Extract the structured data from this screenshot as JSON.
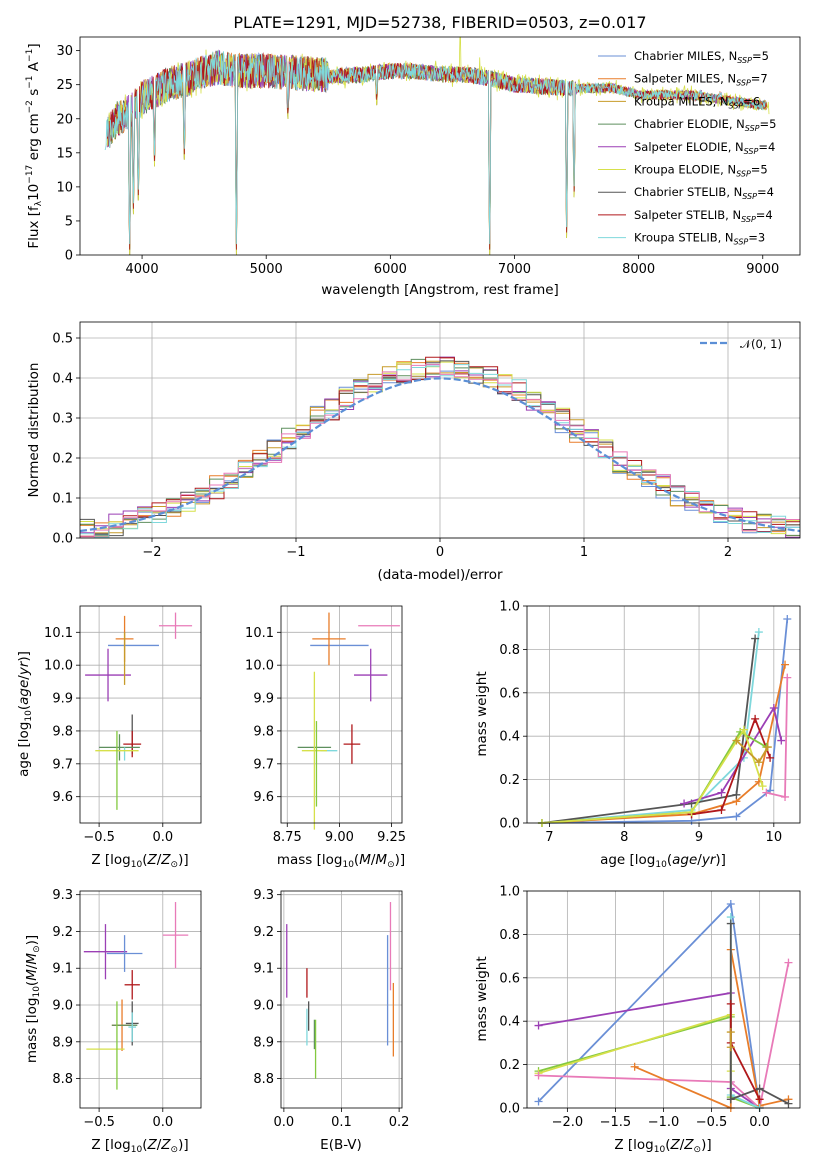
{
  "chart_data": [
    {
      "type": "line",
      "panel": "spectrum",
      "title": "PLATE=1291, MJD=52738, FIBERID=0503, z=0.017",
      "xlabel": "wavelength [Angstrom, rest frame]",
      "ylabel": "Flux [fλ10⁻¹⁷ erg cm⁻² s⁻¹ A⁻¹]",
      "xlim": [
        3500,
        9300
      ],
      "ylim": [
        0,
        32
      ],
      "xticks": [
        "4000",
        "5000",
        "6000",
        "7000",
        "8000",
        "9000"
      ],
      "yticks": [
        "0",
        "5",
        "10",
        "15",
        "20",
        "25",
        "30"
      ],
      "grid": false,
      "legend_position": "top-right",
      "legend": [
        {
          "label": "Chabrier MILES, N",
          "sub": "SSP",
          "tail": "=5",
          "color": "#6a8fd6"
        },
        {
          "label": "Salpeter MILES, N",
          "sub": "SSP",
          "tail": "=7",
          "color": "#e87d2a"
        },
        {
          "label": "Kroupa MILES, N",
          "sub": "SSP",
          "tail": "=6",
          "color": "#c79b2a"
        },
        {
          "label": "Chabrier ELODIE, N",
          "sub": "SSP",
          "tail": "=5",
          "color": "#5e8f5e"
        },
        {
          "label": "Salpeter ELODIE, N",
          "sub": "SSP",
          "tail": "=4",
          "color": "#9b3fb5"
        },
        {
          "label": "Kroupa ELODIE, N",
          "sub": "SSP",
          "tail": "=5",
          "color": "#d6e04a"
        },
        {
          "label": "Chabrier STELIB, N",
          "sub": "SSP",
          "tail": "=4",
          "color": "#555555"
        },
        {
          "label": "Salpeter STELIB, N",
          "sub": "SSP",
          "tail": "=4",
          "color": "#b0181b"
        },
        {
          "label": "Kroupa STELIB, N",
          "sub": "SSP",
          "tail": "=3",
          "color": "#7fd8dc"
        }
      ],
      "continuum": {
        "x": [
          3700,
          3800,
          3900,
          4000,
          4100,
          4200,
          4300,
          4400,
          4500,
          4600,
          4800,
          5000,
          5200,
          5400,
          5600,
          5800,
          6000,
          6200,
          6400,
          6600,
          6800,
          7000,
          7200,
          7400,
          7600,
          7800,
          8000,
          8200,
          8400,
          8600,
          8800,
          9000
        ],
        "y": [
          17,
          20,
          21,
          23,
          24,
          25,
          25.5,
          26,
          27,
          27.5,
          27,
          27,
          26.8,
          26.5,
          26.3,
          26.5,
          27,
          27,
          26.5,
          26.5,
          26,
          25,
          24.8,
          24.5,
          24.5,
          24.5,
          23.5,
          23.5,
          23.5,
          23,
          22.5,
          22
        ]
      },
      "absorption_features": [
        {
          "x": 3900,
          "y": 0
        },
        {
          "x": 3930,
          "y": 6
        },
        {
          "x": 3970,
          "y": 8
        },
        {
          "x": 4100,
          "y": 13
        },
        {
          "x": 4340,
          "y": 14
        },
        {
          "x": 4760,
          "y": 0
        },
        {
          "x": 5175,
          "y": 20
        },
        {
          "x": 5890,
          "y": 22
        },
        {
          "x": 6800,
          "y": 0
        },
        {
          "x": 7420,
          "y": 2.5
        },
        {
          "x": 7480,
          "y": 8.5
        },
        {
          "x": 8500,
          "y": 22
        },
        {
          "x": 8660,
          "y": 22
        }
      ],
      "emission_features": [
        {
          "x": 6563,
          "y": 33
        },
        {
          "x": 6720,
          "y": 29
        }
      ]
    },
    {
      "type": "line",
      "panel": "residual-histogram",
      "xlabel": "(data-model)/error",
      "ylabel": "Normed distribution",
      "xlim": [
        -2.5,
        2.5
      ],
      "ylim": [
        0,
        0.54
      ],
      "xticks": [
        "−2",
        "−1",
        "0",
        "1",
        "2"
      ],
      "yticks": [
        "0.0",
        "0.1",
        "0.2",
        "0.3",
        "0.4",
        "0.5"
      ],
      "grid": true,
      "legend_position": "top-right",
      "legend_label": "𝒩(0, 1)",
      "reference_curve": "normal(0,1)",
      "bin_width": 0.1,
      "series_colors": [
        "#6a8fd6",
        "#e87d2a",
        "#c79b2a",
        "#5e8f5e",
        "#9b3fb5",
        "#d6e04a",
        "#555555",
        "#b0181b",
        "#7fd8dc",
        "#e87ab8"
      ]
    },
    {
      "type": "scatter",
      "panel": "age-vs-Z",
      "xlabel": "Z [log₁₀(Z/Z⊙)]",
      "ylabel": "age  [log₁₀(age/yr)]",
      "xlim": [
        -0.65,
        0.3
      ],
      "ylim": [
        9.52,
        10.18
      ],
      "xticks": [
        "−0.5",
        "0.0"
      ],
      "yticks": [
        "9.6",
        "9.7",
        "9.8",
        "9.9",
        "10.0",
        "10.1"
      ],
      "grid": true,
      "points": [
        {
          "color": "#6a8fd6",
          "x": -0.23,
          "xerr": 0.2,
          "y": 10.06,
          "yerr": 0.0
        },
        {
          "color": "#e87ab8",
          "x": 0.1,
          "xerr": 0.13,
          "y": 10.12,
          "yerr": 0.04
        },
        {
          "color": "#e87d2a",
          "x": -0.3,
          "xerr": 0.07,
          "y": 10.08,
          "yerr": 0.07
        },
        {
          "color": "#9b3fb5",
          "x": -0.43,
          "xerr": 0.18,
          "y": 9.97,
          "yerr": 0.08
        },
        {
          "color": "#c79b2a",
          "x": -0.3,
          "xerr": 0.0,
          "y": 10.02,
          "yerr": 0.08
        },
        {
          "color": "#555555",
          "x": -0.24,
          "xerr": 0.0,
          "y": 9.79,
          "yerr": 0.06
        },
        {
          "color": "#b0181b",
          "x": -0.24,
          "xerr": 0.07,
          "y": 9.76,
          "yerr": 0.04
        },
        {
          "color": "#5e8f5e",
          "x": -0.34,
          "xerr": 0.16,
          "y": 9.75,
          "yerr": 0.04
        },
        {
          "color": "#7fd8dc",
          "x": -0.3,
          "xerr": 0.0,
          "y": 9.73,
          "yerr": 0.02
        },
        {
          "color": "#d6e04a",
          "x": -0.36,
          "xerr": 0.17,
          "y": 9.74,
          "yerr": 0.0
        },
        {
          "color": "#83c93f",
          "x": -0.36,
          "xerr": 0.0,
          "y": 9.68,
          "yerr": 0.12
        }
      ]
    },
    {
      "type": "scatter",
      "panel": "age-vs-mass",
      "xlabel": "mass [log₁₀(M/M⊙)]",
      "ylabel": "",
      "xlim": [
        8.72,
        9.3
      ],
      "ylim": [
        9.52,
        10.18
      ],
      "xticks": [
        "8.75",
        "9.00",
        "9.25"
      ],
      "yticks": [
        "9.6",
        "9.7",
        "9.8",
        "9.9",
        "10.0",
        "10.1"
      ],
      "grid": true,
      "points": [
        {
          "color": "#6a8fd6",
          "x": 9.0,
          "xerr": 0.14,
          "y": 10.06,
          "yerr": 0.0
        },
        {
          "color": "#e87ab8",
          "x": 9.19,
          "xerr": 0.1,
          "y": 10.12,
          "yerr": 0.0
        },
        {
          "color": "#e87d2a",
          "x": 8.95,
          "xerr": 0.08,
          "y": 10.08,
          "yerr": 0.08
        },
        {
          "color": "#9b3fb5",
          "x": 9.15,
          "xerr": 0.08,
          "y": 9.97,
          "yerr": 0.08
        },
        {
          "color": "#b0181b",
          "x": 9.06,
          "xerr": 0.04,
          "y": 9.76,
          "yerr": 0.06
        },
        {
          "color": "#5e8f5e",
          "x": 8.88,
          "xerr": 0.08,
          "y": 9.75,
          "yerr": 0.0
        },
        {
          "color": "#7fd8dc",
          "x": 8.95,
          "xerr": 0.04,
          "y": 9.74,
          "yerr": 0.0
        },
        {
          "color": "#d6e04a",
          "x": 8.88,
          "xerr": 0.06,
          "y": 9.74,
          "yerr": 0.24
        },
        {
          "color": "#83c93f",
          "x": 8.89,
          "xerr": 0.0,
          "y": 9.7,
          "yerr": 0.13
        }
      ]
    },
    {
      "type": "line",
      "panel": "mass-weight-vs-age",
      "xlabel": "age  [log₁₀(age/yr)]",
      "ylabel": "mass weight",
      "xlim": [
        6.7,
        10.35
      ],
      "ylim": [
        0,
        1.0
      ],
      "xticks": [
        "7",
        "8",
        "9",
        "10"
      ],
      "yticks": [
        "0.0",
        "0.2",
        "0.4",
        "0.6",
        "0.8",
        "1.0"
      ],
      "grid": true,
      "series": [
        {
          "color": "#6a8fd6",
          "x": [
            6.9,
            8.9,
            9.5,
            9.95,
            10.18
          ],
          "y": [
            0.0,
            0.01,
            0.03,
            0.15,
            0.94
          ]
        },
        {
          "color": "#e87d2a",
          "x": [
            6.9,
            8.9,
            9.5,
            9.8,
            10.15
          ],
          "y": [
            0.0,
            0.04,
            0.1,
            0.19,
            0.73
          ]
        },
        {
          "color": "#7fd8dc",
          "x": [
            6.9,
            8.9,
            9.6,
            9.8
          ],
          "y": [
            0.0,
            0.06,
            0.3,
            0.88
          ]
        },
        {
          "color": "#555555",
          "x": [
            6.9,
            8.9,
            9.5,
            9.75
          ],
          "y": [
            0.0,
            0.09,
            0.13,
            0.85
          ]
        },
        {
          "color": "#9b3fb5",
          "x": [
            8.8,
            9.3,
            10.0,
            10.1
          ],
          "y": [
            0.09,
            0.14,
            0.53,
            0.38
          ]
        },
        {
          "color": "#b0181b",
          "x": [
            8.9,
            9.3,
            9.75,
            9.95
          ],
          "y": [
            0.04,
            0.06,
            0.48,
            0.3
          ]
        },
        {
          "color": "#83c93f",
          "x": [
            6.9,
            8.9,
            9.55,
            9.9
          ],
          "y": [
            0.0,
            0.05,
            0.42,
            0.35
          ]
        },
        {
          "color": "#d6e04a",
          "x": [
            6.9,
            8.9,
            9.6,
            9.85
          ],
          "y": [
            0.0,
            0.05,
            0.43,
            0.17
          ]
        },
        {
          "color": "#c79b2a",
          "x": [
            9.5,
            9.8,
            9.92
          ],
          "y": [
            0.38,
            0.28,
            0.35
          ]
        },
        {
          "color": "#e87ab8",
          "x": [
            9.9,
            10.15,
            10.18
          ],
          "y": [
            0.14,
            0.12,
            0.67
          ]
        }
      ]
    },
    {
      "type": "scatter",
      "panel": "mass-vs-Z",
      "xlabel": "Z [log₁₀(Z/Z⊙)]",
      "ylabel": "mass [log₁₀(M/M⊙)]",
      "xlim": [
        -0.65,
        0.3
      ],
      "ylim": [
        8.72,
        9.31
      ],
      "xticks": [
        "−0.5",
        "0.0"
      ],
      "yticks": [
        "8.8",
        "8.9",
        "9.0",
        "9.1",
        "9.2",
        "9.3"
      ],
      "grid": true,
      "points": [
        {
          "color": "#9b3fb5",
          "x": -0.45,
          "xerr": 0.17,
          "y": 9.145,
          "yerr": 0.075
        },
        {
          "color": "#6a8fd6",
          "x": -0.3,
          "xerr": 0.14,
          "y": 9.14,
          "yerr": 0.05
        },
        {
          "color": "#e87ab8",
          "x": 0.1,
          "xerr": 0.1,
          "y": 9.19,
          "yerr": 0.09
        },
        {
          "color": "#b0181b",
          "x": -0.24,
          "xerr": 0.06,
          "y": 9.055,
          "yerr": 0.04
        },
        {
          "color": "#e87d2a",
          "x": -0.32,
          "xerr": 0.08,
          "y": 8.945,
          "yerr": 0.07
        },
        {
          "color": "#555555",
          "x": -0.24,
          "xerr": 0.05,
          "y": 8.95,
          "yerr": 0.06
        },
        {
          "color": "#5e8f5e",
          "x": -0.3,
          "xerr": 0.1,
          "y": 8.945,
          "yerr": 0.0
        },
        {
          "color": "#7fd8dc",
          "x": -0.24,
          "xerr": 0.03,
          "y": 8.94,
          "yerr": 0.04
        },
        {
          "color": "#d6e04a",
          "x": -0.45,
          "xerr": 0.15,
          "y": 8.88,
          "yerr": 0.0
        },
        {
          "color": "#83c93f",
          "x": -0.36,
          "xerr": 0.0,
          "y": 8.89,
          "yerr": 0.12
        }
      ]
    },
    {
      "type": "scatter",
      "panel": "mass-vs-EBV",
      "xlabel": "E(B-V)",
      "ylabel": "",
      "xlim": [
        -0.005,
        0.205
      ],
      "ylim": [
        8.72,
        9.31
      ],
      "xticks": [
        "0.0",
        "0.1",
        "0.2"
      ],
      "yticks": [
        "8.8",
        "8.9",
        "9.0",
        "9.1",
        "9.2",
        "9.3"
      ],
      "grid": true,
      "points": [
        {
          "color": "#9b3fb5",
          "x": 0.005,
          "xerr": 0.0,
          "y": 9.12,
          "yerr": 0.1
        },
        {
          "color": "#b0181b",
          "x": 0.04,
          "xerr": 0.0,
          "y": 9.06,
          "yerr": 0.04
        },
        {
          "color": "#555555",
          "x": 0.043,
          "xerr": 0.0,
          "y": 8.97,
          "yerr": 0.04
        },
        {
          "color": "#7fd8dc",
          "x": 0.04,
          "xerr": 0.0,
          "y": 8.94,
          "yerr": 0.05
        },
        {
          "color": "#5e8f5e",
          "x": 0.053,
          "xerr": 0.0,
          "y": 8.92,
          "yerr": 0.04
        },
        {
          "color": "#83c93f",
          "x": 0.055,
          "xerr": 0.0,
          "y": 8.88,
          "yerr": 0.08
        },
        {
          "color": "#6a8fd6",
          "x": 0.18,
          "xerr": 0.0,
          "y": 9.04,
          "yerr": 0.15
        },
        {
          "color": "#e87ab8",
          "x": 0.185,
          "xerr": 0.0,
          "y": 9.16,
          "yerr": 0.12
        },
        {
          "color": "#e87d2a",
          "x": 0.19,
          "xerr": 0.0,
          "y": 8.96,
          "yerr": 0.1
        }
      ]
    },
    {
      "type": "line",
      "panel": "mass-weight-vs-Z",
      "xlabel": "Z [log₁₀(Z/Z⊙)]",
      "ylabel": "mass weight",
      "xlim": [
        -2.42,
        0.42
      ],
      "ylim": [
        0,
        1.0
      ],
      "xticks": [
        "−2.0",
        "−1.5",
        "−1.0",
        "−0.5",
        "0.0"
      ],
      "yticks": [
        "0.0",
        "0.2",
        "0.4",
        "0.6",
        "0.8",
        "1.0"
      ],
      "grid": true,
      "series": [
        {
          "color": "#6a8fd6",
          "x": [
            -2.3,
            -0.3,
            0.0
          ],
          "y": [
            0.03,
            0.94,
            0.0
          ]
        },
        {
          "color": "#9b3fb5",
          "x": [
            -2.3,
            -0.3,
            -0.3,
            0.0
          ],
          "y": [
            0.38,
            0.53,
            0.09,
            0.0
          ]
        },
        {
          "color": "#83c93f",
          "x": [
            -2.3,
            -0.3,
            -0.3,
            0.0
          ],
          "y": [
            0.17,
            0.42,
            0.05,
            0.0
          ]
        },
        {
          "color": "#d6e04a",
          "x": [
            -2.3,
            -0.3,
            -0.3
          ],
          "y": [
            0.16,
            0.43,
            0.17
          ]
        },
        {
          "color": "#e87ab8",
          "x": [
            -2.3,
            -0.3,
            0.0,
            0.3
          ],
          "y": [
            0.15,
            0.12,
            0.0,
            0.67
          ]
        },
        {
          "color": "#e87d2a",
          "x": [
            -1.3,
            -0.3,
            -0.3,
            0.0,
            0.3
          ],
          "y": [
            0.19,
            0.0,
            0.73,
            0.01,
            0.04
          ]
        },
        {
          "color": "#7fd8dc",
          "x": [
            -0.3,
            -0.3,
            0.0
          ],
          "y": [
            0.88,
            0.06,
            0.0
          ]
        },
        {
          "color": "#555555",
          "x": [
            -0.3,
            -0.3,
            0.0,
            0.3
          ],
          "y": [
            0.85,
            0.04,
            0.09,
            0.02
          ]
        },
        {
          "color": "#b0181b",
          "x": [
            -0.3,
            -0.3,
            0.0
          ],
          "y": [
            0.48,
            0.3,
            0.04
          ]
        },
        {
          "color": "#c79b2a",
          "x": [
            -0.3,
            -0.3
          ],
          "y": [
            0.35,
            0.28
          ]
        }
      ]
    }
  ]
}
